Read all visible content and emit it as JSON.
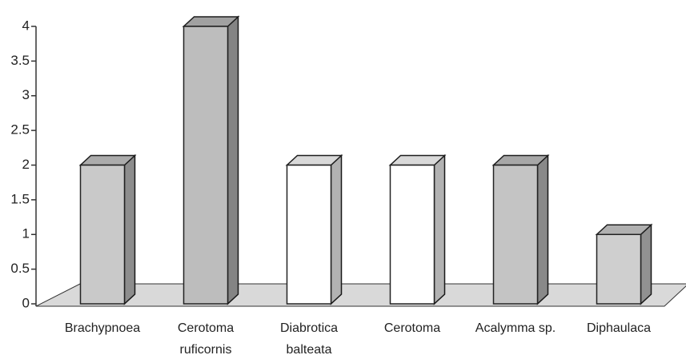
{
  "chart_data": {
    "type": "bar3d",
    "categories": [
      "Brachypnoea",
      "Cerotoma ruficornis",
      "Diabrotica balteata",
      "Cerotoma",
      "Acalymma sp.",
      "Diphaulaca"
    ],
    "values": [
      2,
      4,
      2,
      2,
      2,
      1
    ],
    "colors": [
      "#c9c9c9",
      "#bdbdbd",
      "#ffffff",
      "#ffffff",
      "#c4c4c4",
      "#cfcfcf"
    ],
    "ylim": [
      0,
      4
    ],
    "yticks": [
      0,
      0.5,
      1,
      1.5,
      2,
      2.5,
      3,
      3.5,
      4
    ],
    "grid": false
  }
}
